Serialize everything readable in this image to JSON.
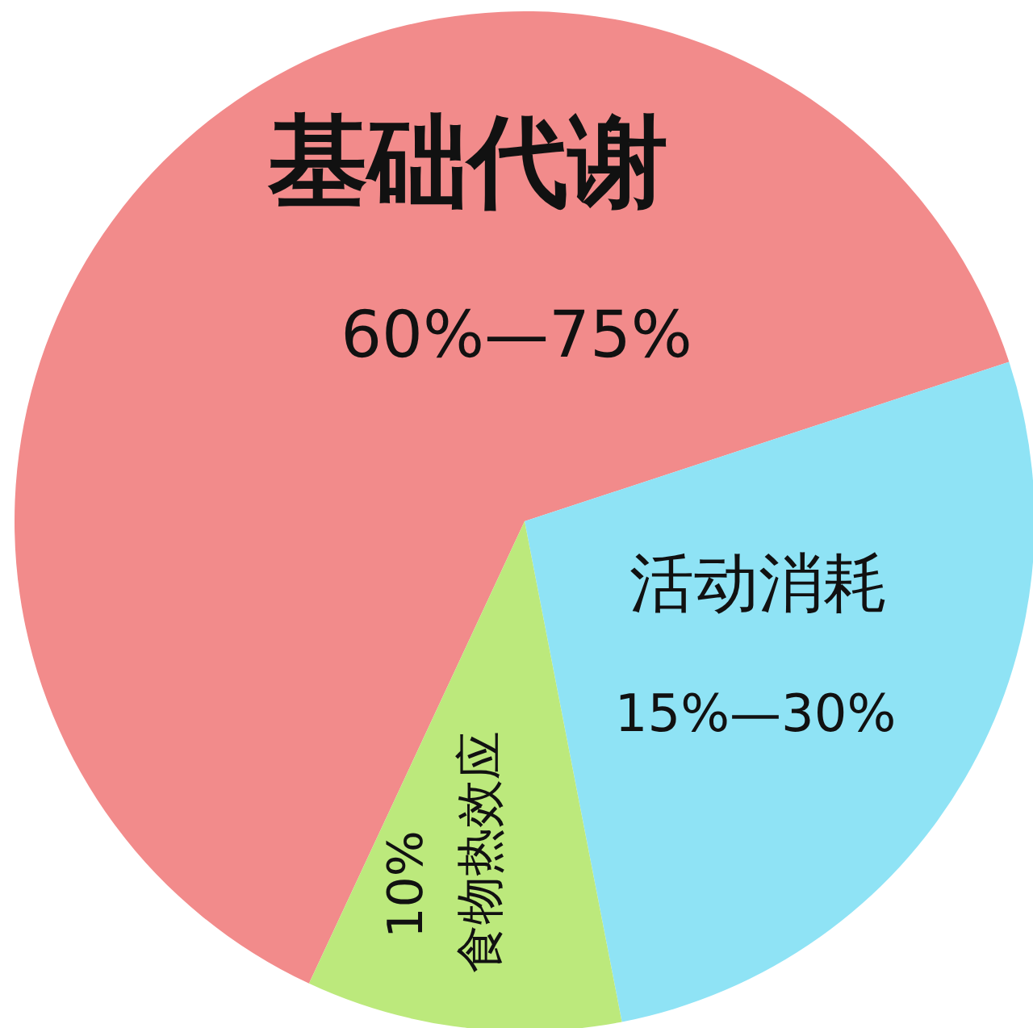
{
  "chart_data": {
    "type": "pie",
    "categories": [
      "基础代谢",
      "活动消耗",
      "食物热效应"
    ],
    "values": [
      63,
      27,
      10
    ],
    "colors": [
      "#f28b8b",
      "#8fe3f5",
      "#bce97c"
    ],
    "value_labels": [
      null,
      null,
      "10%"
    ],
    "annotations": [
      "60%—75%",
      "15%—30%"
    ]
  }
}
